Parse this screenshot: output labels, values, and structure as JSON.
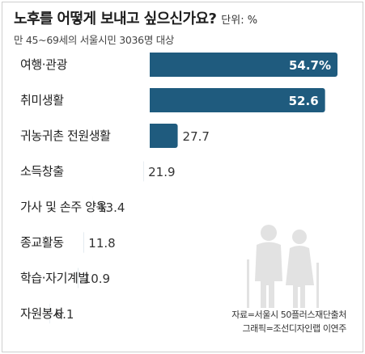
{
  "header": {
    "title": "노후를 어떻게 보내고 싶으신가요?",
    "unit": "단위: %",
    "subtitle": "만 45~69세의 서울시민 3036명 대상"
  },
  "chart_data": {
    "type": "bar",
    "orientation": "horizontal",
    "title": "노후를 어떻게 보내고 싶으신가요?",
    "unit": "%",
    "categories": [
      "여행·관광",
      "취미생활",
      "귀농귀촌 전원생활",
      "소득창출",
      "가사 및 손주 양육",
      "종교활동",
      "학습·자기계발",
      "자원봉사"
    ],
    "values": [
      54.7,
      52.6,
      27.7,
      21.9,
      13.4,
      11.8,
      10.9,
      6.1
    ],
    "value_labels": [
      "54.7%",
      "52.6",
      "27.7",
      "21.9",
      "13.4",
      "11.8",
      "10.9",
      "6.1"
    ],
    "bar_color": "#1f5b7e",
    "grid": false,
    "legend": "none"
  },
  "illustration": {
    "name": "elderly-couple-icon",
    "color": "#e2e2e2"
  },
  "footer": {
    "source": "자료=서울시 50플러스재단출처",
    "credit": "그래픽=조선디자인랩 이연주"
  }
}
